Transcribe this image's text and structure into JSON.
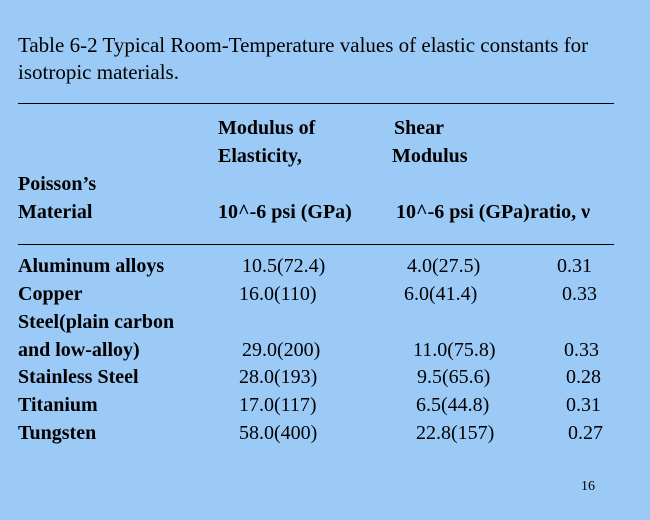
{
  "title": {
    "line1": "Table 6-2 Typical Room-Temperature values of elastic constants for",
    "line2": "isotropic materials."
  },
  "headers": {
    "modulus_line1": "Modulus of",
    "modulus_line2": "Elasticity,",
    "shear_line1": "Shear",
    "shear_line2": "Modulus",
    "poisson_line": "Poisson’s",
    "material": "Material",
    "modulus_units": "10^-6 psi (GPa)",
    "shear_units": "10^-6 psi (GPa)",
    "ratio": "ratio, ν"
  },
  "rows": [
    {
      "material": "Aluminum alloys",
      "modulus": "10.5(72.4)",
      "shear": "4.0(27.5)",
      "ratio": "0.31"
    },
    {
      "material": "Copper",
      "modulus": "16.0(110)",
      "shear": "6.0(41.4)",
      "ratio": "0.33"
    },
    {
      "material": "Steel(plain carbon",
      "modulus": "",
      "shear": "",
      "ratio": ""
    },
    {
      "material": "and low-alloy)",
      "modulus": "29.0(200)",
      "shear": "11.0(75.8)",
      "ratio": "0.33"
    },
    {
      "material": "Stainless Steel",
      "modulus": "28.0(193)",
      "shear": "9.5(65.6)",
      "ratio": "0.28"
    },
    {
      "material": "Titanium",
      "modulus": "17.0(117)",
      "shear": "6.5(44.8)",
      "ratio": "0.31"
    },
    {
      "material": "Tungsten",
      "modulus": "58.0(400)",
      "shear": "22.8(157)",
      "ratio": "0.27"
    }
  ],
  "page_number": "16",
  "colors": {
    "background": "#9ccaf7",
    "text": "#000000"
  }
}
